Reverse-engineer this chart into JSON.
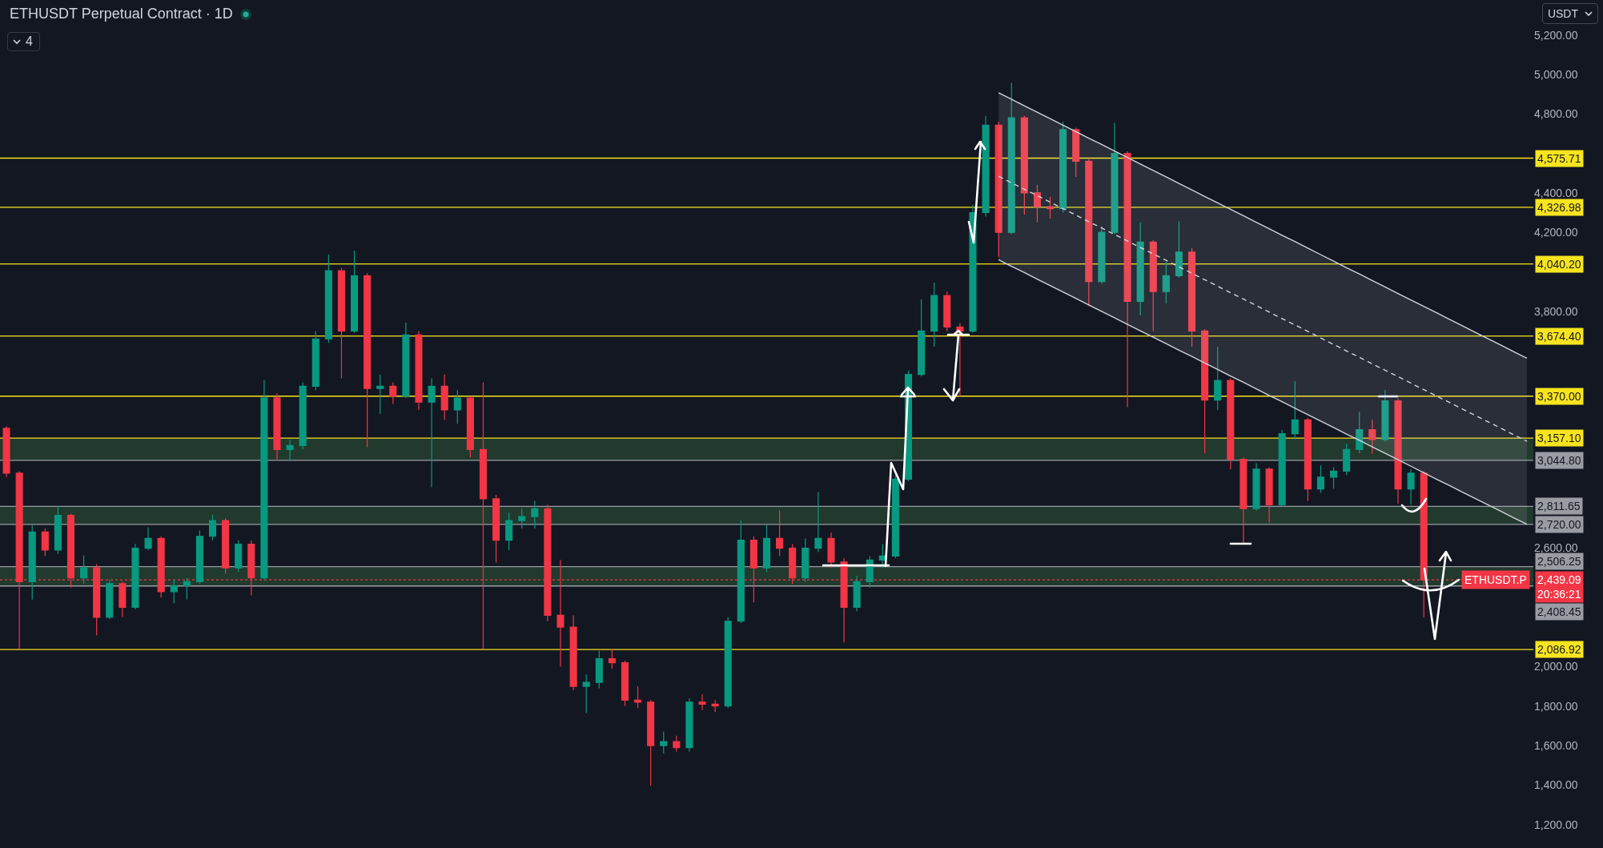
{
  "chart_data": {
    "type": "candlestick",
    "title": "ETHUSDT Perpetual Contract · 1D",
    "subtitle": "4",
    "ylabel": "USDT",
    "categories": [
      null,
      null,
      null,
      null,
      null,
      null,
      null,
      null,
      null,
      null,
      null,
      null,
      null,
      null,
      null,
      null,
      null,
      null,
      null,
      null,
      null,
      null,
      null,
      null,
      null,
      null,
      null,
      null,
      null,
      null,
      null,
      null,
      null,
      null,
      null,
      null,
      null,
      null,
      null,
      null,
      null,
      null,
      null,
      null,
      null,
      null,
      null,
      null,
      null,
      null,
      null,
      null,
      null,
      null,
      null,
      null,
      null,
      null,
      null,
      null,
      null,
      null,
      null,
      null,
      null,
      null,
      null,
      null,
      null,
      null,
      null,
      null,
      null,
      null,
      null,
      null,
      null,
      null,
      null,
      null,
      null,
      null,
      null,
      null,
      null,
      null,
      null,
      null,
      null,
      null,
      null,
      null,
      null,
      null,
      null,
      null,
      null,
      null,
      null,
      null,
      null,
      null,
      null,
      null,
      null,
      null,
      null,
      null,
      null,
      null,
      null,
      null,
      null,
      null,
      null,
      null,
      null,
      null,
      null
    ],
    "ohlc": [
      [
        3207,
        3218,
        2960,
        2980
      ],
      [
        2980,
        2990,
        2087,
        2430
      ],
      [
        2430,
        2718,
        2340,
        2682
      ],
      [
        2682,
        2700,
        2560,
        2590
      ],
      [
        2590,
        2814,
        2570,
        2766
      ],
      [
        2766,
        2775,
        2400,
        2450
      ],
      [
        2450,
        2563,
        2420,
        2500
      ],
      [
        2500,
        2520,
        2158,
        2250
      ],
      [
        2250,
        2440,
        2240,
        2420
      ],
      [
        2420,
        2430,
        2250,
        2300
      ],
      [
        2300,
        2622,
        2290,
        2600
      ],
      [
        2600,
        2706,
        2590,
        2650
      ],
      [
        2650,
        2660,
        2350,
        2380
      ],
      [
        2380,
        2440,
        2320,
        2410
      ],
      [
        2410,
        2450,
        2340,
        2430
      ],
      [
        2430,
        2690,
        2420,
        2660
      ],
      [
        2660,
        2770,
        2640,
        2740
      ],
      [
        2740,
        2750,
        2470,
        2500
      ],
      [
        2500,
        2640,
        2480,
        2620
      ],
      [
        2620,
        2640,
        2360,
        2450
      ],
      [
        2450,
        3452,
        2440,
        3361
      ],
      [
        3361,
        3385,
        3050,
        3100
      ],
      [
        3100,
        3150,
        3040,
        3120
      ],
      [
        3120,
        3440,
        3100,
        3420
      ],
      [
        3420,
        3700,
        3400,
        3660
      ],
      [
        3660,
        4088,
        3640,
        4005
      ],
      [
        4005,
        4020,
        3460,
        3700
      ],
      [
        3700,
        4107,
        3690,
        3980
      ],
      [
        3980,
        3993,
        3111,
        3409
      ],
      [
        3409,
        3480,
        3280,
        3420
      ],
      [
        3420,
        3440,
        3330,
        3370
      ],
      [
        3370,
        3742,
        3360,
        3680
      ],
      [
        3680,
        3700,
        3300,
        3340
      ],
      [
        3340,
        3460,
        2909,
        3420
      ],
      [
        3420,
        3480,
        3250,
        3300
      ],
      [
        3300,
        3400,
        3230,
        3360
      ],
      [
        3360,
        3370,
        3060,
        3100
      ],
      [
        3100,
        3440,
        2087,
        2850
      ],
      [
        2850,
        2870,
        2527,
        2640
      ],
      [
        2640,
        2780,
        2590,
        2740
      ],
      [
        2740,
        2800,
        2700,
        2760
      ],
      [
        2760,
        2840,
        2700,
        2800
      ],
      [
        2800,
        2820,
        2230,
        2260
      ],
      [
        2260,
        2540,
        2000,
        2200
      ],
      [
        2200,
        2260,
        1880,
        1900
      ],
      [
        1900,
        1960,
        1765,
        1920
      ],
      [
        1920,
        2080,
        1890,
        2040
      ],
      [
        2040,
        2090,
        1990,
        2020
      ],
      [
        2020,
        2030,
        1800,
        1830
      ],
      [
        1830,
        1900,
        1790,
        1820
      ],
      [
        1820,
        1830,
        1396,
        1600
      ],
      [
        1600,
        1670,
        1560,
        1620
      ],
      [
        1620,
        1650,
        1570,
        1590
      ],
      [
        1590,
        1840,
        1570,
        1820
      ],
      [
        1820,
        1860,
        1780,
        1810
      ],
      [
        1810,
        1830,
        1770,
        1800
      ],
      [
        1800,
        2250,
        1790,
        2230
      ],
      [
        2230,
        2742,
        2220,
        2640
      ],
      [
        2640,
        2660,
        2325,
        2500
      ],
      [
        2500,
        2720,
        2480,
        2650
      ],
      [
        2650,
        2790,
        2560,
        2600
      ],
      [
        2600,
        2620,
        2420,
        2450
      ],
      [
        2450,
        2650,
        2430,
        2600
      ],
      [
        2600,
        2885,
        2580,
        2650
      ],
      [
        2650,
        2680,
        2500,
        2530
      ],
      [
        2530,
        2550,
        2123,
        2300
      ],
      [
        2300,
        2460,
        2280,
        2430
      ],
      [
        2430,
        2560,
        2400,
        2540
      ],
      [
        2540,
        2620,
        2500,
        2560
      ],
      [
        2560,
        2970,
        2550,
        2950
      ],
      [
        2950,
        3500,
        2940,
        3480
      ],
      [
        3480,
        3861,
        3470,
        3700
      ],
      [
        3700,
        3945,
        3620,
        3880
      ],
      [
        3880,
        3900,
        3700,
        3720
      ],
      [
        3720,
        3740,
        3370,
        3700
      ],
      [
        3700,
        4340,
        3690,
        4300
      ],
      [
        4300,
        4790,
        4280,
        4743
      ],
      [
        4743,
        4760,
        4076,
        4200
      ],
      [
        4200,
        4957,
        4190,
        4780
      ],
      [
        4780,
        4790,
        4290,
        4400
      ],
      [
        4400,
        4440,
        4250,
        4330
      ],
      [
        4330,
        4380,
        4270,
        4320
      ],
      [
        4320,
        4760,
        4300,
        4720
      ],
      [
        4720,
        4730,
        4480,
        4560
      ],
      [
        4560,
        4570,
        3826,
        3950
      ],
      [
        3950,
        4230,
        3940,
        4200
      ],
      [
        4200,
        4755,
        4190,
        4600
      ],
      [
        4600,
        4610,
        3314,
        3850
      ],
      [
        3850,
        4250,
        3780,
        4150
      ],
      [
        4150,
        4160,
        3700,
        3900
      ],
      [
        3900,
        4050,
        3840,
        3980
      ],
      [
        3980,
        4255,
        3970,
        4100
      ],
      [
        4100,
        4120,
        3620,
        3700
      ],
      [
        3700,
        3710,
        3080,
        3350
      ],
      [
        3350,
        3620,
        3300,
        3450
      ],
      [
        3450,
        3460,
        3000,
        3050
      ],
      [
        3050,
        3060,
        2623,
        2800
      ],
      [
        2800,
        3030,
        2790,
        3000
      ],
      [
        3000,
        3010,
        2730,
        2820
      ],
      [
        2820,
        3200,
        2810,
        3180
      ],
      [
        3180,
        3445,
        3150,
        3250
      ],
      [
        3250,
        3260,
        2840,
        2900
      ],
      [
        2900,
        3020,
        2880,
        2960
      ],
      [
        2960,
        3010,
        2900,
        2990
      ],
      [
        2990,
        3130,
        2970,
        3100
      ],
      [
        3100,
        3291,
        3080,
        3200
      ],
      [
        3200,
        3250,
        3080,
        3150
      ],
      [
        3150,
        3401,
        3140,
        3346
      ],
      [
        3346,
        3360,
        2825,
        2900
      ],
      [
        2900,
        3000,
        2820,
        2980
      ],
      [
        2980,
        2990,
        2248,
        2439.09
      ],
      null,
      null,
      null,
      null,
      null,
      null,
      null,
      null
    ],
    "series": [
      {
        "type": "line",
        "color": "#d1d4dc",
        "line_style": "dashed",
        "values": [
          null,
          null,
          null,
          null,
          null,
          null,
          null,
          null,
          null,
          null,
          null,
          null,
          null,
          null,
          null,
          null,
          null,
          null,
          null,
          null,
          null,
          null,
          null,
          null,
          null,
          null,
          null,
          null,
          null,
          null,
          null,
          null,
          null,
          null,
          null,
          null,
          null,
          null,
          null,
          null,
          null,
          null,
          null,
          null,
          null,
          null,
          null,
          null,
          null,
          null,
          null,
          null,
          null,
          null,
          null,
          null,
          null,
          null,
          null,
          null,
          null,
          null,
          null,
          null,
          null,
          null,
          null,
          null,
          null,
          null,
          null,
          null,
          null,
          null,
          null,
          null,
          null,
          4484,
          4451,
          4418,
          4386,
          4353,
          4320,
          4287,
          4254,
          4222,
          4189,
          4156,
          4123,
          4091,
          4058,
          4025,
          3993,
          3960,
          3927,
          3894,
          3862,
          3829,
          3796,
          3763,
          3731,
          3698,
          3665,
          3632,
          3599,
          3567,
          3534,
          3501,
          3469,
          3436,
          3403,
          3370,
          3338,
          3305,
          3272,
          3240,
          3207,
          3174,
          3141
        ],
        "lower": [
          null,
          null,
          null,
          null,
          null,
          null,
          null,
          null,
          null,
          null,
          null,
          null,
          null,
          null,
          null,
          null,
          null,
          null,
          null,
          null,
          null,
          null,
          null,
          null,
          null,
          null,
          null,
          null,
          null,
          null,
          null,
          null,
          null,
          null,
          null,
          null,
          null,
          null,
          null,
          null,
          null,
          null,
          null,
          null,
          null,
          null,
          null,
          null,
          null,
          null,
          null,
          null,
          null,
          null,
          null,
          null,
          null,
          null,
          null,
          null,
          null,
          null,
          null,
          null,
          null,
          null,
          null,
          null,
          null,
          null,
          null,
          null,
          null,
          null,
          null,
          null,
          null,
          4061,
          4028,
          3996,
          3963,
          3930,
          3898,
          3865,
          3832,
          3799,
          3767,
          3734,
          3701,
          3669,
          3636,
          3603,
          3571,
          3538,
          3505,
          3472,
          3440,
          3407,
          3374,
          3342,
          3309,
          3276,
          3244,
          3211,
          3178,
          3146,
          3113,
          3080,
          3048,
          3015,
          2982,
          2949,
          2917,
          2884,
          2851,
          2819,
          2786,
          2753,
          2721
        ],
        "upper": [
          null,
          null,
          null,
          null,
          null,
          null,
          null,
          null,
          null,
          null,
          null,
          null,
          null,
          null,
          null,
          null,
          null,
          null,
          null,
          null,
          null,
          null,
          null,
          null,
          null,
          null,
          null,
          null,
          null,
          null,
          null,
          null,
          null,
          null,
          null,
          null,
          null,
          null,
          null,
          null,
          null,
          null,
          null,
          null,
          null,
          null,
          null,
          null,
          null,
          null,
          null,
          null,
          null,
          null,
          null,
          null,
          null,
          null,
          null,
          null,
          null,
          null,
          null,
          null,
          null,
          null,
          null,
          null,
          null,
          null,
          null,
          null,
          null,
          null,
          null,
          null,
          null,
          4907,
          4874,
          4841,
          4809,
          4776,
          4743,
          4710,
          4677,
          4645,
          4612,
          4579,
          4546,
          4513,
          4481,
          4448,
          4415,
          4382,
          4349,
          4317,
          4284,
          4251,
          4218,
          4185,
          4153,
          4120,
          4087,
          4054,
          4021,
          3989,
          3956,
          3923,
          3890,
          3857,
          3825,
          3792,
          3759,
          3726,
          3693,
          3661,
          3628,
          3595,
          3562
        ]
      },
      {
        "type": "line",
        "color": "#d1d4dc",
        "line_style": "solid",
        "values": [
          null,
          null,
          null,
          null,
          null,
          null,
          null,
          null,
          null,
          null,
          null,
          null,
          null,
          null,
          null,
          null,
          null,
          null,
          null,
          null,
          null,
          null,
          null,
          null,
          null,
          null,
          null,
          null,
          null,
          null,
          null,
          null,
          null,
          null,
          null,
          null,
          null,
          null,
          null,
          null,
          null,
          null,
          null,
          null,
          null,
          null,
          null,
          null,
          null,
          null,
          null,
          null,
          null,
          null,
          null,
          null,
          null,
          null,
          null,
          null,
          null,
          null,
          null,
          null,
          null,
          null,
          null,
          null,
          null,
          null,
          null,
          null,
          null,
          null,
          null,
          null,
          null,
          4907,
          4874,
          4841,
          4809,
          4776,
          4743,
          4710,
          4677,
          4645,
          4612,
          4579,
          4546,
          4513,
          4481,
          4448,
          4415,
          4382,
          4349,
          4317,
          4284,
          4251,
          4218,
          4185,
          4153,
          4120,
          4087,
          4054,
          4021,
          3989,
          3956,
          3923,
          3890,
          3857,
          3825,
          3792,
          3759,
          3726,
          3693,
          3661,
          3628,
          3595,
          3562
        ]
      },
      {
        "type": "line",
        "color": "#d1d4dc",
        "line_style": "solid",
        "values": [
          null,
          null,
          null,
          null,
          null,
          null,
          null,
          null,
          null,
          null,
          null,
          null,
          null,
          null,
          null,
          null,
          null,
          null,
          null,
          null,
          null,
          null,
          null,
          null,
          null,
          null,
          null,
          null,
          null,
          null,
          null,
          null,
          null,
          null,
          null,
          null,
          null,
          null,
          null,
          null,
          null,
          null,
          null,
          null,
          null,
          null,
          null,
          null,
          null,
          null,
          null,
          null,
          null,
          null,
          null,
          null,
          null,
          null,
          null,
          null,
          null,
          null,
          null,
          null,
          null,
          null,
          null,
          null,
          null,
          null,
          null,
          null,
          null,
          null,
          null,
          null,
          null,
          4061,
          4028,
          3996,
          3963,
          3930,
          3898,
          3865,
          3832,
          3799,
          3767,
          3734,
          3701,
          3669,
          3636,
          3603,
          3571,
          3538,
          3505,
          3472,
          3440,
          3407,
          3374,
          3342,
          3309,
          3276,
          3244,
          3211,
          3178,
          3146,
          3113,
          3080,
          3048,
          3015,
          2982,
          2949,
          2917,
          2884,
          2851,
          2819,
          2786,
          2753,
          2721
        ]
      }
    ],
    "ylim": [
      1081,
      5377
    ],
    "yticks": [
      {
        "value": 1200,
        "label": "1,200.00"
      },
      {
        "value": 1400,
        "label": "1,400.00"
      },
      {
        "value": 1600,
        "label": "1,600.00"
      },
      {
        "value": 1800,
        "label": "1,800.00"
      },
      {
        "value": 2000,
        "label": "2,000.00"
      },
      {
        "value": 2600,
        "label": "2,600.00"
      },
      {
        "value": 3800,
        "label": "3,800.00"
      },
      {
        "value": 4200,
        "label": "4,200.00"
      },
      {
        "value": 4400,
        "label": "4,400.00"
      },
      {
        "value": 4800,
        "label": "4,800.00"
      },
      {
        "value": 5000,
        "label": "5,000.00"
      },
      {
        "value": 5200,
        "label": "5,200.00"
      }
    ],
    "bands": [
      {
        "axis": "y",
        "from": 3044.8,
        "to": 3157.1,
        "color": "#22392e"
      },
      {
        "axis": "y",
        "from": 2720.0,
        "to": 2811.65,
        "color": "#22392e"
      },
      {
        "axis": "y",
        "from": 2408.45,
        "to": 2506.25,
        "color": "#22392e"
      }
    ],
    "ref_lines": [
      {
        "axis": "y",
        "value": 4575.71,
        "label": "4,575.71",
        "color": "#f7e41e"
      },
      {
        "axis": "y",
        "value": 4326.98,
        "label": "4,326.98",
        "color": "#f7e41e"
      },
      {
        "axis": "y",
        "value": 4040.2,
        "label": "4,040.20",
        "color": "#f7e41e"
      },
      {
        "axis": "y",
        "value": 3674.4,
        "label": "3,674.40",
        "color": "#f7e41e"
      },
      {
        "axis": "y",
        "value": 3370.0,
        "label": "3,370.00",
        "color": "#f7e41e"
      },
      {
        "axis": "y",
        "value": 3157.1,
        "label": "3,157.10",
        "color": "#f7e41e"
      },
      {
        "axis": "y",
        "value": 3044.8,
        "label": "3,044.80",
        "color": "#9a9ca4"
      },
      {
        "axis": "y",
        "value": 2811.65,
        "label": "2,811.65",
        "color": "#9a9ca4"
      },
      {
        "axis": "y",
        "value": 2720.0,
        "label": "2,720.00",
        "color": "#9a9ca4"
      },
      {
        "axis": "y",
        "value": 2506.25,
        "label": "2,506.25",
        "color": "#9a9ca4"
      },
      {
        "axis": "y",
        "value": 2408.45,
        "label": "2,408.45",
        "color": "#9a9ca4"
      },
      {
        "axis": "y",
        "value": 2086.92,
        "label": "2,086.92",
        "color": "#f7e41e"
      },
      {
        "axis": "y",
        "value": 2439.09,
        "label": "2,439.09\n20:36:21",
        "color": "#f23645",
        "line_style": "dotted"
      }
    ],
    "annotations": [
      {
        "text": "ETHUSDT.P",
        "y": 2439.09
      }
    ],
    "grid": false,
    "tick_labels": "y"
  }
}
